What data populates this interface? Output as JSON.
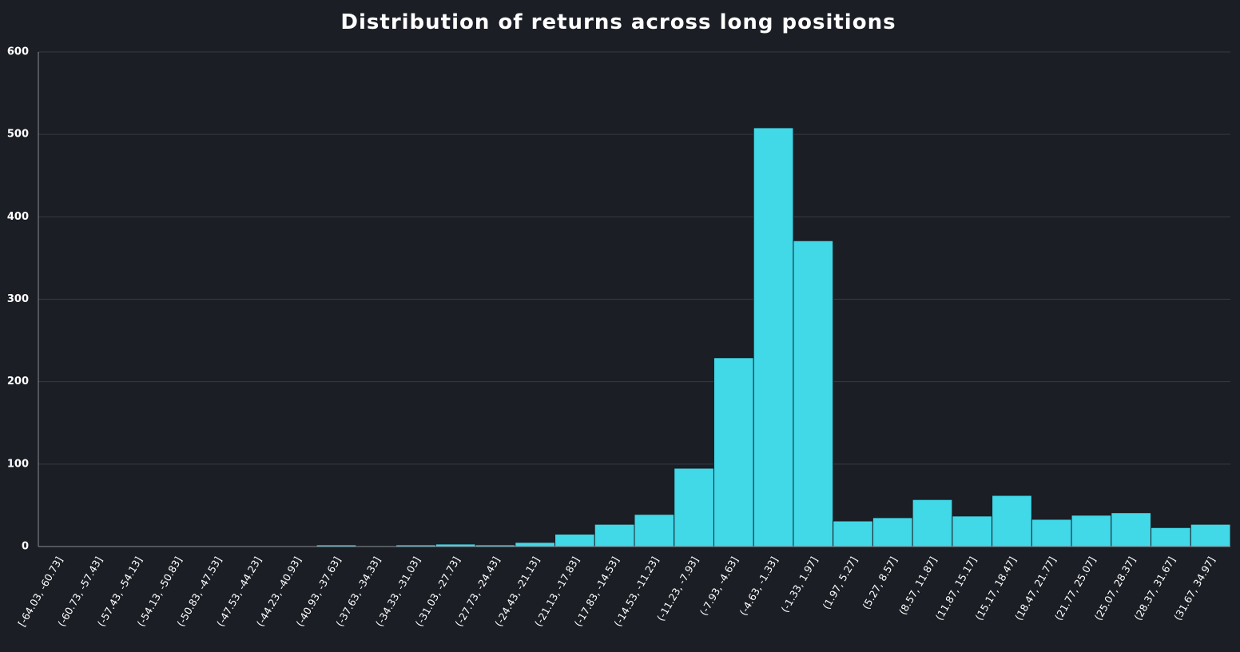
{
  "chart_data": {
    "type": "bar",
    "title": "Distribution of returns across long positions",
    "categories": [
      "[-64.03, -60.73]",
      "(-60.73, -57.43]",
      "(-57.43, -54.13]",
      "(-54.13, -50.83]",
      "(-50.83, -47.53]",
      "(-47.53, -44.23]",
      "(-44.23, -40.93]",
      "(-40.93, -37.63]",
      "(-37.63, -34.33]",
      "(-34.33, -31.03]",
      "(-31.03, -27.73]",
      "(-27.73, -24.43]",
      "(-24.43, -21.13]",
      "(-21.13, -17.83]",
      "(-17.83, -14.53]",
      "(-14.53, -11.23]",
      "(-11.23, -7.93]",
      "(-7.93, -4.63]",
      "(-4.63, -1.33]",
      "(-1.33, 1.97]",
      "(1.97, 5.27]",
      "(5.27, 8.57]",
      "(8.57, 11.87]",
      "(11.87, 15.17]",
      "(15.17, 18.47]",
      "(18.47, 21.77]",
      "(21.77, 25.07]",
      "(25.07, 28.37]",
      "(28.37, 31.67]",
      "(31.67, 34.97]"
    ],
    "values": [
      0,
      0,
      0,
      0,
      0,
      0,
      0,
      2,
      1,
      2,
      3,
      2,
      5,
      15,
      27,
      39,
      95,
      229,
      508,
      371,
      31,
      35,
      57,
      37,
      62,
      33,
      38,
      41,
      23,
      27
    ],
    "color": "#41d8e8",
    "ylim": [
      0,
      600
    ],
    "yticks": [
      0,
      100,
      200,
      300,
      400,
      500,
      600
    ],
    "grid": true
  }
}
